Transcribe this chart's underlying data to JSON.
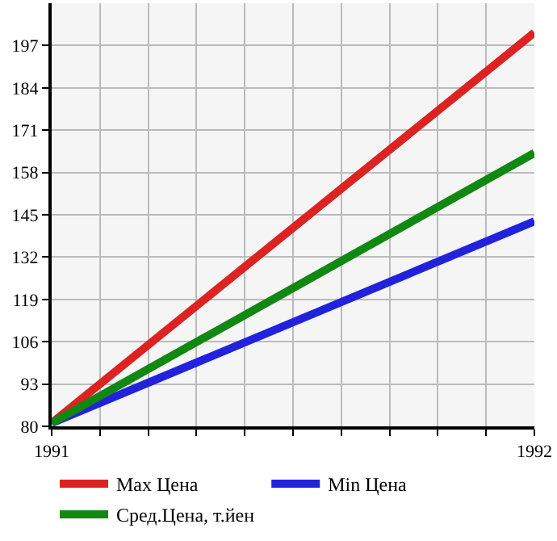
{
  "chart_data": {
    "type": "line",
    "x": [
      1991,
      1992
    ],
    "series": [
      {
        "name": "Max Цена",
        "color": "#dd2222",
        "values": [
          81,
          201
        ]
      },
      {
        "name": "Min Цена",
        "color": "#2222dd",
        "values": [
          81,
          143
        ]
      },
      {
        "name": "Сред.Цена, т.йен",
        "color": "#118811",
        "values": [
          81,
          164
        ]
      }
    ],
    "xlim": [
      1991,
      1992
    ],
    "xticks": [
      1991,
      {
        "value": 1991.1,
        "label": null
      },
      {
        "value": 1991.2,
        "label": null
      },
      {
        "value": 1991.3,
        "label": null
      },
      {
        "value": 1991.4,
        "label": null
      },
      {
        "value": 1991.5,
        "label": null
      },
      {
        "value": 1991.6,
        "label": null
      },
      {
        "value": 1991.7,
        "label": null
      },
      {
        "value": 1991.8,
        "label": null
      },
      {
        "value": 1991.9,
        "label": null
      },
      1992
    ],
    "ylim": [
      80,
      210
    ],
    "yticks": [
      80,
      93,
      106,
      119,
      132,
      145,
      158,
      171,
      184,
      197
    ],
    "grid": true,
    "legend": "bottom",
    "marker": "none",
    "line_style": "solid"
  }
}
